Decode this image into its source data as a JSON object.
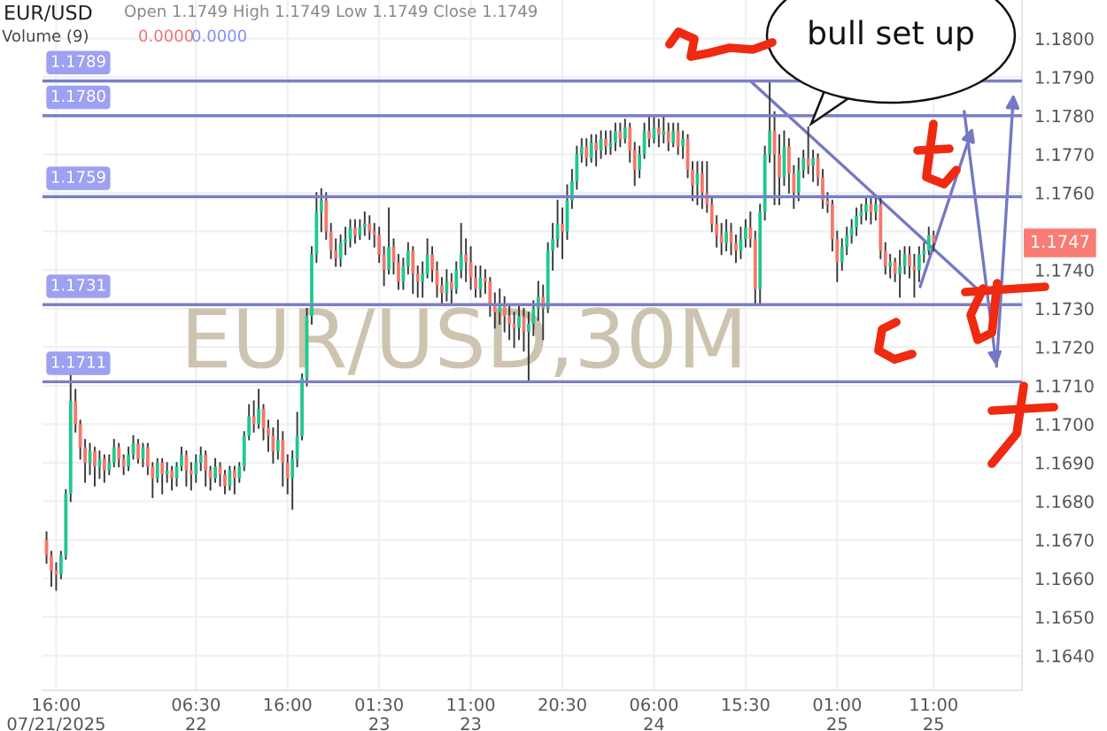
{
  "chart_data": {
    "type": "candlestick",
    "title": "EUR/USD",
    "annotations": [
      "Open 1.1749 High 1.1749 Low 1.1749 Close 1.1749",
      "Volume (9)",
      "0.0000",
      "0.0000",
      "EUR/USD,30M",
      "bull set up",
      "1.1747"
    ],
    "colors": [
      "#f7766d",
      "#f7766d",
      "#f7766d",
      "#1fc98d",
      "#1fc98d",
      "#1fc98d",
      "#f7766d",
      "#f7766d",
      "#f7766d",
      "#1fc98d",
      "#f7766d",
      "#1fc98d",
      "#f7766d",
      "#1fc98d",
      "#1fc98d",
      "#f7766d",
      "#f7766d",
      "#1fc98d",
      "#1fc98d",
      "#f7766d",
      "#1fc98d",
      "#f7766d",
      "#f7766d",
      "#1fc98d",
      "#f7766d",
      "#1fc98d",
      "#f7766d",
      "#1fc98d",
      "#1fc98d",
      "#f7766d",
      "#f7766d",
      "#1fc98d",
      "#1fc98d",
      "#f7766d",
      "#f7766d",
      "#1fc98d",
      "#f7766d",
      "#f7766d",
      "#1fc98d",
      "#f7766d",
      "#1fc98d",
      "#1fc98d",
      "#1fc98d",
      "#f7766d",
      "#1fc98d",
      "#f7766d",
      "#f7766d",
      "#f7766d",
      "#1fc98d",
      "#f7766d",
      "#f7766d",
      "#1fc98d",
      "#1fc98d",
      "#1fc98d",
      "#1fc98d",
      "#1fc98d",
      "#1fc98d",
      "#1fc98d",
      "#f7766d",
      "#f7766d",
      "#f7766d",
      "#1fc98d",
      "#1fc98d",
      "#1fc98d",
      "#f7766d",
      "#1fc98d",
      "#1fc98d",
      "#f7766d",
      "#f7766d",
      "#f7766d",
      "#f7766d",
      "#1fc98d",
      "#f7766d",
      "#f7766d",
      "#1fc98d",
      "#1fc98d",
      "#f7766d",
      "#f7766d",
      "#1fc98d",
      "#1fc98d",
      "#f7766d",
      "#f7766d",
      "#f7766d",
      "#1fc98d",
      "#f7766d",
      "#1fc98d",
      "#1fc98d",
      "#f7766d",
      "#f7766d",
      "#f7766d",
      "#1fc98d",
      "#f7766d",
      "#f7766d",
      "#f7766d",
      "#1fc98d",
      "#f7766d",
      "#f7766d",
      "#f7766d",
      "#1fc98d",
      "#f7766d",
      "#1fc98d",
      "#1fc98d",
      "#1fc98d",
      "#f7766d",
      "#1fc98d",
      "#1fc98d",
      "#1fc98d",
      "#f7766d",
      "#1fc98d",
      "#1fc98d",
      "#1fc98d",
      "#1fc98d",
      "#f7766d",
      "#1fc98d",
      "#f7766d",
      "#1fc98d",
      "#f7766d",
      "#1fc98d",
      "#1fc98d",
      "#f7766d",
      "#1fc98d",
      "#f7766d",
      "#f7766d",
      "#1fc98d",
      "#1fc98d",
      "#f7766d",
      "#1fc98d",
      "#f7766d",
      "#1fc98d",
      "#f7766d",
      "#1fc98d",
      "#f7766d",
      "#1fc98d",
      "#f7766d",
      "#f7766d",
      "#1fc98d",
      "#f7766d",
      "#f7766d",
      "#f7766d",
      "#f7766d",
      "#f7766d",
      "#1fc98d",
      "#f7766d",
      "#f7766d",
      "#1fc98d",
      "#1fc98d",
      "#f7766d",
      "#f7766d",
      "#1fc98d",
      "#1fc98d",
      "#1fc98d",
      "#f7766d",
      "#f7766d",
      "#1fc98d",
      "#f7766d",
      "#f7766d",
      "#1fc98d",
      "#1fc98d",
      "#f7766d",
      "#1fc98d",
      "#f7766d",
      "#f7766d",
      "#f7766d",
      "#f7766d",
      "#f7766d",
      "#1fc98d",
      "#1fc98d",
      "#1fc98d",
      "#1fc98d",
      "#1fc98d",
      "#1fc98d",
      "#f7766d",
      "#1fc98d",
      "#f7766d",
      "#f7766d",
      "#1fc98d",
      "#f7766d",
      "#1fc98d",
      "#1fc98d",
      "#f7766d",
      "#f7766d",
      "#1fc98d",
      "#1fc98d",
      "#1fc98d",
      "#f7766d"
    ],
    "x": [
      "2025-07-21T15:00",
      "2025-07-21T15:30",
      "2025-07-21T16:00",
      "2025-07-21T16:30",
      "2025-07-21T17:00",
      "2025-07-21T17:30",
      "2025-07-21T18:00",
      "2025-07-21T18:30",
      "2025-07-21T19:00",
      "2025-07-21T19:30",
      "2025-07-21T20:00",
      "2025-07-21T20:30",
      "2025-07-21T21:00",
      "2025-07-21T21:30",
      "2025-07-21T22:00",
      "2025-07-21T22:30",
      "2025-07-21T23:00",
      "2025-07-21T23:30",
      "2025-07-22T00:00",
      "2025-07-22T00:30",
      "2025-07-22T01:00",
      "2025-07-22T01:30",
      "2025-07-22T02:00",
      "2025-07-22T02:30",
      "2025-07-22T03:00",
      "2025-07-22T03:30",
      "2025-07-22T04:00",
      "2025-07-22T04:30",
      "2025-07-22T05:00",
      "2025-07-22T05:30",
      "2025-07-22T06:00",
      "2025-07-22T06:30",
      "2025-07-22T07:00",
      "2025-07-22T07:30",
      "2025-07-22T08:00",
      "2025-07-22T08:30",
      "2025-07-22T09:00",
      "2025-07-22T09:30",
      "2025-07-22T10:00",
      "2025-07-22T10:30",
      "2025-07-22T11:00",
      "2025-07-22T11:30",
      "2025-07-22T12:00",
      "2025-07-22T12:30",
      "2025-07-22T13:00",
      "2025-07-22T13:30",
      "2025-07-22T14:00",
      "2025-07-22T14:30",
      "2025-07-22T15:00",
      "2025-07-22T15:30",
      "2025-07-22T16:00",
      "2025-07-22T16:30",
      "2025-07-22T17:00",
      "2025-07-22T17:30",
      "2025-07-22T18:00",
      "2025-07-22T18:30",
      "2025-07-22T19:00",
      "2025-07-22T19:30",
      "2025-07-22T20:00",
      "2025-07-22T20:30",
      "2025-07-22T21:00",
      "2025-07-22T21:30",
      "2025-07-22T22:00",
      "2025-07-22T22:30",
      "2025-07-22T23:00",
      "2025-07-22T23:30",
      "2025-07-23T00:00",
      "2025-07-23T00:30",
      "2025-07-23T01:00",
      "2025-07-23T01:30",
      "2025-07-23T02:00",
      "2025-07-23T02:30",
      "2025-07-23T03:00",
      "2025-07-23T03:30",
      "2025-07-23T04:00",
      "2025-07-23T04:30",
      "2025-07-23T05:00",
      "2025-07-23T05:30",
      "2025-07-23T06:00",
      "2025-07-23T06:30",
      "2025-07-23T07:00",
      "2025-07-23T07:30",
      "2025-07-23T08:00",
      "2025-07-23T08:30",
      "2025-07-23T09:00",
      "2025-07-23T09:30",
      "2025-07-23T10:00",
      "2025-07-23T10:30",
      "2025-07-23T11:00",
      "2025-07-23T11:30",
      "2025-07-23T12:00",
      "2025-07-23T12:30",
      "2025-07-23T13:00",
      "2025-07-23T13:30",
      "2025-07-23T14:00",
      "2025-07-23T14:30",
      "2025-07-23T15:00",
      "2025-07-23T15:30",
      "2025-07-23T16:00",
      "2025-07-23T16:30",
      "2025-07-23T17:00",
      "2025-07-23T17:30",
      "2025-07-23T18:00",
      "2025-07-23T18:30",
      "2025-07-23T19:00",
      "2025-07-23T19:30",
      "2025-07-23T20:00",
      "2025-07-23T20:30",
      "2025-07-23T21:00",
      "2025-07-23T21:30",
      "2025-07-23T22:00",
      "2025-07-23T22:30",
      "2025-07-23T23:00",
      "2025-07-23T23:30",
      "2025-07-24T00:00",
      "2025-07-24T00:30",
      "2025-07-24T01:00",
      "2025-07-24T01:30",
      "2025-07-24T02:00",
      "2025-07-24T02:30",
      "2025-07-24T03:00",
      "2025-07-24T03:30",
      "2025-07-24T04:00",
      "2025-07-24T04:30",
      "2025-07-24T05:00",
      "2025-07-24T05:30",
      "2025-07-24T06:00",
      "2025-07-24T06:30",
      "2025-07-24T07:00",
      "2025-07-24T07:30",
      "2025-07-24T08:00",
      "2025-07-24T08:30",
      "2025-07-24T09:00",
      "2025-07-24T09:30",
      "2025-07-24T10:00",
      "2025-07-24T10:30",
      "2025-07-24T11:00",
      "2025-07-24T11:30",
      "2025-07-24T12:00",
      "2025-07-24T12:30",
      "2025-07-24T13:00",
      "2025-07-24T13:30",
      "2025-07-24T14:00",
      "2025-07-24T14:30",
      "2025-07-24T15:00",
      "2025-07-24T15:30",
      "2025-07-24T16:00",
      "2025-07-24T16:30",
      "2025-07-24T17:00",
      "2025-07-24T17:30",
      "2025-07-24T18:00",
      "2025-07-24T18:30",
      "2025-07-24T19:00",
      "2025-07-24T19:30",
      "2025-07-24T20:00",
      "2025-07-24T20:30",
      "2025-07-24T21:00",
      "2025-07-24T21:30",
      "2025-07-24T22:00",
      "2025-07-24T22:30",
      "2025-07-24T23:00",
      "2025-07-24T23:30",
      "2025-07-25T00:00",
      "2025-07-25T00:30",
      "2025-07-25T01:00",
      "2025-07-25T01:30",
      "2025-07-25T02:00",
      "2025-07-25T02:30",
      "2025-07-25T03:00",
      "2025-07-25T03:30",
      "2025-07-25T04:00",
      "2025-07-25T04:30",
      "2025-07-25T05:00",
      "2025-07-25T05:30",
      "2025-07-25T06:00",
      "2025-07-25T06:30",
      "2025-07-25T07:00",
      "2025-07-25T07:30",
      "2025-07-25T08:00",
      "2025-07-25T08:30",
      "2025-07-25T09:00",
      "2025-07-25T09:30",
      "2025-07-25T10:00",
      "2025-07-25T10:30",
      "2025-07-25T11:00"
    ],
    "ohlc": [
      [
        1.167,
        1.1672,
        1.1664,
        1.1666
      ],
      [
        1.1666,
        1.1667,
        1.1658,
        1.1662
      ],
      [
        1.1662,
        1.1664,
        1.1657,
        1.1661
      ],
      [
        1.1661,
        1.1667,
        1.166,
        1.1666
      ],
      [
        1.1666,
        1.1683,
        1.1665,
        1.1682
      ],
      [
        1.1682,
        1.1713,
        1.168,
        1.1706
      ],
      [
        1.1706,
        1.1709,
        1.1698,
        1.17
      ],
      [
        1.17,
        1.1701,
        1.1691,
        1.1694
      ],
      [
        1.1694,
        1.1696,
        1.1685,
        1.169
      ],
      [
        1.169,
        1.1695,
        1.1687,
        1.1693
      ],
      [
        1.1693,
        1.1694,
        1.1684,
        1.1689
      ],
      [
        1.1689,
        1.1693,
        1.1686,
        1.1691
      ],
      [
        1.1691,
        1.1692,
        1.1685,
        1.1688
      ],
      [
        1.1688,
        1.1692,
        1.1687,
        1.169
      ],
      [
        1.169,
        1.1696,
        1.1689,
        1.1694
      ],
      [
        1.1694,
        1.1695,
        1.1689,
        1.1691
      ],
      [
        1.1691,
        1.1692,
        1.1687,
        1.1689
      ],
      [
        1.1689,
        1.1694,
        1.1688,
        1.1692
      ],
      [
        1.1692,
        1.1697,
        1.1691,
        1.1695
      ],
      [
        1.1695,
        1.1696,
        1.169,
        1.1691
      ],
      [
        1.1691,
        1.1695,
        1.1689,
        1.1694
      ],
      [
        1.1694,
        1.1695,
        1.1687,
        1.1689
      ],
      [
        1.1689,
        1.169,
        1.1681,
        1.1686
      ],
      [
        1.1686,
        1.1691,
        1.1685,
        1.169
      ],
      [
        1.169,
        1.1691,
        1.1682,
        1.1687
      ],
      [
        1.1687,
        1.169,
        1.1685,
        1.1688
      ],
      [
        1.1688,
        1.1689,
        1.1683,
        1.1686
      ],
      [
        1.1686,
        1.169,
        1.1684,
        1.1689
      ],
      [
        1.1689,
        1.1694,
        1.1688,
        1.1692
      ],
      [
        1.1692,
        1.1693,
        1.1684,
        1.1688
      ],
      [
        1.1688,
        1.169,
        1.1683,
        1.1687
      ],
      [
        1.1687,
        1.1692,
        1.1685,
        1.169
      ],
      [
        1.169,
        1.1694,
        1.1688,
        1.1692
      ],
      [
        1.1692,
        1.1693,
        1.1684,
        1.1688
      ],
      [
        1.1688,
        1.1689,
        1.1683,
        1.1686
      ],
      [
        1.1686,
        1.1691,
        1.1685,
        1.1689
      ],
      [
        1.1689,
        1.169,
        1.1684,
        1.1687
      ],
      [
        1.1687,
        1.1688,
        1.1682,
        1.1684
      ],
      [
        1.1684,
        1.1689,
        1.1683,
        1.1688
      ],
      [
        1.1688,
        1.1689,
        1.1682,
        1.1686
      ],
      [
        1.1686,
        1.169,
        1.1685,
        1.1689
      ],
      [
        1.1689,
        1.1698,
        1.1688,
        1.1697
      ],
      [
        1.1697,
        1.1705,
        1.1696,
        1.1702
      ],
      [
        1.1702,
        1.1706,
        1.1698,
        1.17
      ],
      [
        1.17,
        1.1709,
        1.1699,
        1.1704
      ],
      [
        1.1704,
        1.1705,
        1.1696,
        1.1699
      ],
      [
        1.1699,
        1.1701,
        1.1693,
        1.1697
      ],
      [
        1.1697,
        1.1699,
        1.169,
        1.1693
      ],
      [
        1.1693,
        1.1701,
        1.1691,
        1.1696
      ],
      [
        1.1696,
        1.1698,
        1.1684,
        1.169
      ],
      [
        1.169,
        1.1692,
        1.1682,
        1.1686
      ],
      [
        1.1686,
        1.1693,
        1.1678,
        1.1691
      ],
      [
        1.1691,
        1.1703,
        1.1689,
        1.1697
      ],
      [
        1.1697,
        1.1713,
        1.1696,
        1.1712
      ],
      [
        1.1712,
        1.173,
        1.171,
        1.1728
      ],
      [
        1.1728,
        1.1746,
        1.1726,
        1.1744
      ],
      [
        1.1744,
        1.176,
        1.1742,
        1.1755
      ],
      [
        1.1755,
        1.1761,
        1.175,
        1.1758
      ],
      [
        1.1758,
        1.176,
        1.1748,
        1.175
      ],
      [
        1.175,
        1.1752,
        1.1743,
        1.1745
      ],
      [
        1.1745,
        1.1748,
        1.1741,
        1.1743
      ],
      [
        1.1743,
        1.1749,
        1.1741,
        1.1747
      ],
      [
        1.1747,
        1.1751,
        1.1744,
        1.1748
      ],
      [
        1.1748,
        1.1753,
        1.1746,
        1.1751
      ],
      [
        1.1751,
        1.1753,
        1.1747,
        1.1749
      ],
      [
        1.1749,
        1.1753,
        1.1748,
        1.1751
      ],
      [
        1.1751,
        1.1755,
        1.1749,
        1.1752
      ],
      [
        1.1752,
        1.1754,
        1.1748,
        1.175
      ],
      [
        1.175,
        1.1752,
        1.1746,
        1.1749
      ],
      [
        1.1749,
        1.1751,
        1.1742,
        1.1744
      ],
      [
        1.1744,
        1.1746,
        1.1736,
        1.174
      ],
      [
        1.174,
        1.1756,
        1.1739,
        1.1746
      ],
      [
        1.1746,
        1.1748,
        1.1739,
        1.1742
      ],
      [
        1.1742,
        1.1744,
        1.1735,
        1.1737
      ],
      [
        1.1737,
        1.1743,
        1.1735,
        1.1741
      ],
      [
        1.1741,
        1.1747,
        1.1739,
        1.1745
      ],
      [
        1.1745,
        1.1746,
        1.1734,
        1.1739
      ],
      [
        1.1739,
        1.1741,
        1.1733,
        1.1737
      ],
      [
        1.1737,
        1.1742,
        1.1733,
        1.1739
      ],
      [
        1.1739,
        1.1748,
        1.1738,
        1.1744
      ],
      [
        1.1744,
        1.1746,
        1.1737,
        1.174
      ],
      [
        1.174,
        1.1742,
        1.1733,
        1.1736
      ],
      [
        1.1736,
        1.1738,
        1.1731,
        1.1734
      ],
      [
        1.1734,
        1.174,
        1.1732,
        1.1737
      ],
      [
        1.1737,
        1.1739,
        1.1731,
        1.1735
      ],
      [
        1.1735,
        1.1742,
        1.1734,
        1.174
      ],
      [
        1.174,
        1.1752,
        1.1738,
        1.1744
      ],
      [
        1.1744,
        1.1748,
        1.1737,
        1.1742
      ],
      [
        1.1742,
        1.1746,
        1.1735,
        1.1738
      ],
      [
        1.1738,
        1.1741,
        1.1733,
        1.1735
      ],
      [
        1.1735,
        1.1741,
        1.1733,
        1.1738
      ],
      [
        1.1738,
        1.174,
        1.1734,
        1.1737
      ],
      [
        1.1737,
        1.1738,
        1.1728,
        1.1731
      ],
      [
        1.1731,
        1.1734,
        1.1725,
        1.1729
      ],
      [
        1.1729,
        1.1735,
        1.1726,
        1.1731
      ],
      [
        1.1731,
        1.1733,
        1.1724,
        1.1728
      ],
      [
        1.1728,
        1.1731,
        1.1722,
        1.1726
      ],
      [
        1.1726,
        1.1729,
        1.172,
        1.1725
      ],
      [
        1.1725,
        1.1731,
        1.1722,
        1.1728
      ],
      [
        1.1728,
        1.173,
        1.1719,
        1.1724
      ],
      [
        1.1724,
        1.1729,
        1.1711,
        1.1726
      ],
      [
        1.1726,
        1.1732,
        1.1723,
        1.173
      ],
      [
        1.173,
        1.1737,
        1.1727,
        1.1733
      ],
      [
        1.1733,
        1.1736,
        1.1722,
        1.173
      ],
      [
        1.173,
        1.1747,
        1.1729,
        1.1745
      ],
      [
        1.1745,
        1.1752,
        1.174,
        1.1748
      ],
      [
        1.1748,
        1.1758,
        1.1746,
        1.1752
      ],
      [
        1.1752,
        1.1756,
        1.1743,
        1.175
      ],
      [
        1.175,
        1.1762,
        1.1748,
        1.1758
      ],
      [
        1.1758,
        1.1766,
        1.1756,
        1.1763
      ],
      [
        1.1763,
        1.1772,
        1.1761,
        1.177
      ],
      [
        1.177,
        1.1774,
        1.1768,
        1.1772
      ],
      [
        1.1772,
        1.1774,
        1.1767,
        1.1769
      ],
      [
        1.1769,
        1.1775,
        1.1768,
        1.1773
      ],
      [
        1.1773,
        1.1775,
        1.1767,
        1.1771
      ],
      [
        1.1771,
        1.1776,
        1.1769,
        1.1774
      ],
      [
        1.1774,
        1.1776,
        1.177,
        1.1772
      ],
      [
        1.1772,
        1.1776,
        1.177,
        1.1773
      ],
      [
        1.1773,
        1.1778,
        1.1771,
        1.1776
      ],
      [
        1.1776,
        1.1778,
        1.1772,
        1.1774
      ],
      [
        1.1774,
        1.1779,
        1.1773,
        1.1777
      ],
      [
        1.1777,
        1.1778,
        1.1768,
        1.1771
      ],
      [
        1.1771,
        1.1773,
        1.1762,
        1.1766
      ],
      [
        1.1766,
        1.1772,
        1.1764,
        1.177
      ],
      [
        1.177,
        1.1778,
        1.1769,
        1.1776
      ],
      [
        1.1776,
        1.178,
        1.1772,
        1.1774
      ],
      [
        1.1774,
        1.178,
        1.1773,
        1.1777
      ],
      [
        1.1777,
        1.1779,
        1.1772,
        1.1775
      ],
      [
        1.1775,
        1.178,
        1.1773,
        1.1776
      ],
      [
        1.1776,
        1.1778,
        1.1771,
        1.1773
      ],
      [
        1.1773,
        1.1778,
        1.1772,
        1.1776
      ],
      [
        1.1776,
        1.1778,
        1.177,
        1.1772
      ],
      [
        1.1772,
        1.1776,
        1.1769,
        1.1774
      ],
      [
        1.1774,
        1.1775,
        1.1764,
        1.1766
      ],
      [
        1.1766,
        1.1768,
        1.1758,
        1.1762
      ],
      [
        1.1762,
        1.1768,
        1.1757,
        1.1765
      ],
      [
        1.1765,
        1.1768,
        1.1756,
        1.176
      ],
      [
        1.176,
        1.1768,
        1.1755,
        1.1757
      ],
      [
        1.1757,
        1.1759,
        1.175,
        1.1752
      ],
      [
        1.1752,
        1.1754,
        1.1746,
        1.1749
      ],
      [
        1.1749,
        1.1752,
        1.1744,
        1.1747
      ],
      [
        1.1747,
        1.1753,
        1.1745,
        1.175
      ],
      [
        1.175,
        1.1752,
        1.1744,
        1.1747
      ],
      [
        1.1747,
        1.1749,
        1.1742,
        1.1745
      ],
      [
        1.1745,
        1.1751,
        1.1743,
        1.1748
      ],
      [
        1.1748,
        1.1753,
        1.1746,
        1.1751
      ],
      [
        1.1751,
        1.1755,
        1.1746,
        1.1748
      ],
      [
        1.1748,
        1.175,
        1.1731,
        1.1735
      ],
      [
        1.1735,
        1.1757,
        1.1731,
        1.1755
      ],
      [
        1.1755,
        1.1772,
        1.1753,
        1.177
      ],
      [
        1.177,
        1.1789,
        1.1768,
        1.1776
      ],
      [
        1.1776,
        1.1781,
        1.1757,
        1.177
      ],
      [
        1.177,
        1.1775,
        1.1757,
        1.1764
      ],
      [
        1.1764,
        1.1776,
        1.1762,
        1.1772
      ],
      [
        1.1772,
        1.1774,
        1.176,
        1.1765
      ],
      [
        1.1765,
        1.1767,
        1.1756,
        1.176
      ],
      [
        1.176,
        1.1769,
        1.1758,
        1.1766
      ],
      [
        1.1766,
        1.1771,
        1.1764,
        1.1769
      ],
      [
        1.1769,
        1.1777,
        1.1765,
        1.1767
      ],
      [
        1.1767,
        1.1771,
        1.1763,
        1.1769
      ],
      [
        1.1769,
        1.177,
        1.1762,
        1.1764
      ],
      [
        1.1764,
        1.1766,
        1.1756,
        1.1758
      ],
      [
        1.1758,
        1.176,
        1.1755,
        1.1757
      ],
      [
        1.1757,
        1.1758,
        1.1745,
        1.1748
      ],
      [
        1.1748,
        1.175,
        1.1737,
        1.1742
      ],
      [
        1.1742,
        1.1748,
        1.174,
        1.1746
      ],
      [
        1.1746,
        1.1751,
        1.1744,
        1.1749
      ],
      [
        1.1749,
        1.1753,
        1.1747,
        1.1751
      ],
      [
        1.1751,
        1.1756,
        1.1749,
        1.1754
      ],
      [
        1.1754,
        1.1757,
        1.1752,
        1.1755
      ],
      [
        1.1755,
        1.1759,
        1.1753,
        1.1757
      ],
      [
        1.1757,
        1.1759,
        1.1752,
        1.1755
      ],
      [
        1.1755,
        1.1759,
        1.1753,
        1.1757
      ],
      [
        1.1757,
        1.1759,
        1.1743,
        1.1745
      ],
      [
        1.1745,
        1.1747,
        1.1739,
        1.1741
      ],
      [
        1.1741,
        1.1744,
        1.1738,
        1.1742
      ],
      [
        1.1742,
        1.1743,
        1.1737,
        1.1739
      ],
      [
        1.1739,
        1.1745,
        1.1733,
        1.1741
      ],
      [
        1.1741,
        1.1746,
        1.1739,
        1.1744
      ],
      [
        1.1744,
        1.1746,
        1.1738,
        1.1741
      ],
      [
        1.1741,
        1.1744,
        1.1733,
        1.174
      ],
      [
        1.174,
        1.1746,
        1.1737,
        1.1744
      ],
      [
        1.1744,
        1.1747,
        1.1742,
        1.1745
      ],
      [
        1.1745,
        1.1751,
        1.1744,
        1.1749
      ],
      [
        1.1749,
        1.175,
        1.1745,
        1.1747
      ]
    ],
    "series": [
      {
        "type": "line",
        "x": [
          "2025-07-24T16:00",
          "2025-07-25T16:00"
        ],
        "values": [
          1.1789,
          1.1734
        ],
        "color": "#7478c4"
      }
    ],
    "ref_lines": [
      {
        "axis": "y",
        "value": 1.1789,
        "label": "1.1789",
        "color": "#7b7fc8"
      },
      {
        "axis": "y",
        "value": 1.178,
        "label": "1.1780",
        "color": "#7b7fc8"
      },
      {
        "axis": "y",
        "value": 1.1759,
        "label": "1.1759",
        "color": "#7b7fc8"
      },
      {
        "axis": "y",
        "value": 1.1731,
        "label": "1.1731",
        "color": "#7b7fc8"
      },
      {
        "axis": "y",
        "value": 1.1711,
        "label": "1.1711",
        "color": "#7b7fc8"
      }
    ],
    "xlim": [
      "2025-07-21T14:35",
      "2025-07-25T20:10"
    ],
    "xticks": [
      {
        "value": "2025-07-21T16:00",
        "label": "16:00\n07/21/2025"
      },
      {
        "value": "2025-07-22T06:30",
        "label": "06:30\n22"
      },
      {
        "value": "2025-07-22T16:00",
        "label": "16:00"
      },
      {
        "value": "2025-07-23T01:30",
        "label": "01:30\n23"
      },
      {
        "value": "2025-07-23T11:00",
        "label": "11:00\n23"
      },
      {
        "value": "2025-07-23T20:30",
        "label": "20:30"
      },
      {
        "value": "2025-07-24T06:00",
        "label": "06:00\n24"
      },
      {
        "value": "2025-07-24T15:30",
        "label": "15:30"
      },
      {
        "value": "2025-07-25T01:00",
        "label": "01:00\n25"
      },
      {
        "value": "2025-07-25T11:00",
        "label": "11:00\n25"
      }
    ],
    "ylim": [
      1.1631,
      1.181
    ],
    "yticks": [
      {
        "value": 1.164,
        "label": "1.1640"
      },
      {
        "value": 1.165,
        "label": "1.1650"
      },
      {
        "value": 1.166,
        "label": "1.1660"
      },
      {
        "value": 1.167,
        "label": "1.1670"
      },
      {
        "value": 1.168,
        "label": "1.1680"
      },
      {
        "value": 1.169,
        "label": "1.1690"
      },
      {
        "value": 1.17,
        "label": "1.1700"
      },
      {
        "value": 1.171,
        "label": "1.1710"
      },
      {
        "value": 1.172,
        "label": "1.1720"
      },
      {
        "value": 1.173,
        "label": "1.1730"
      },
      {
        "value": 1.174,
        "label": "1.1740"
      },
      {
        "value": 1.175,
        "label": null
      },
      {
        "value": 1.176,
        "label": "1.1760"
      },
      {
        "value": 1.177,
        "label": "1.1770"
      },
      {
        "value": 1.178,
        "label": "1.1780"
      },
      {
        "value": 1.179,
        "label": "1.1790"
      },
      {
        "value": 1.18,
        "label": "1.1800"
      }
    ],
    "grid": true
  }
}
